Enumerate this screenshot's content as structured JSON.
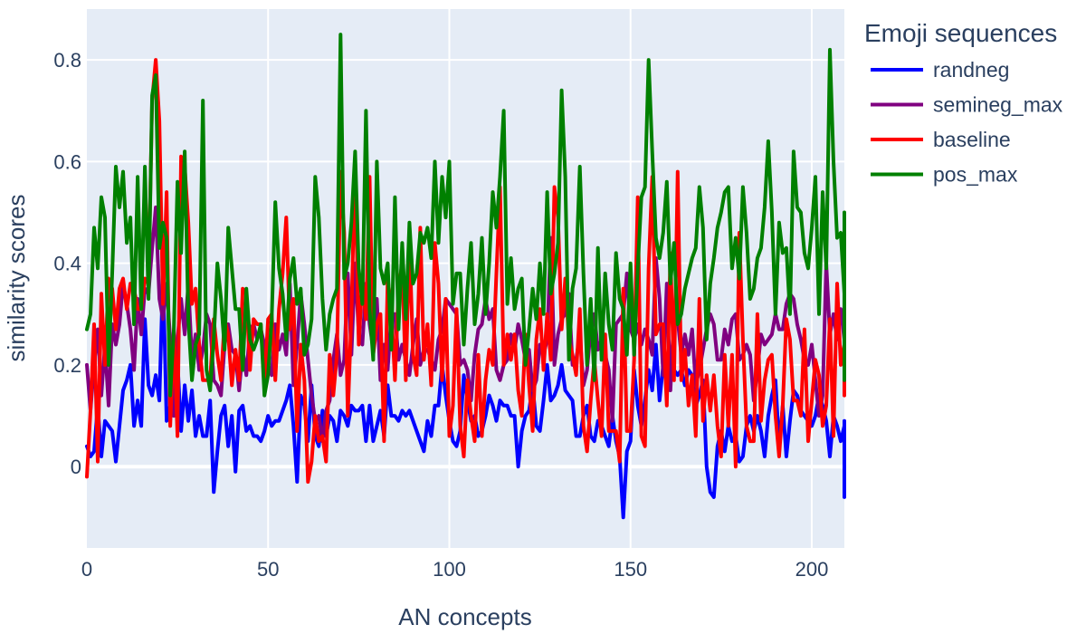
{
  "chart_data": {
    "type": "line",
    "xlabel": "AN concepts",
    "ylabel": "similarity scores",
    "xlim": [
      0,
      209
    ],
    "ylim": [
      -0.16,
      0.9
    ],
    "xticks": [
      0,
      50,
      100,
      150,
      200
    ],
    "yticks": [
      0,
      0.2,
      0.4,
      0.6,
      0.8
    ],
    "ytick_labels": [
      "0",
      "0.2",
      "0.4",
      "0.6",
      "0.8"
    ],
    "grid": true,
    "legend": {
      "title": "Emoji sequences",
      "placement": "right"
    },
    "plot_background": "#e5ecf6",
    "series": [
      {
        "name": "randneg",
        "color": "#0000ff",
        "values": [
          0.04,
          0.02,
          0.03,
          0.12,
          0.02,
          0.09,
          0.08,
          0.07,
          0.01,
          0.08,
          0.15,
          0.17,
          0.2,
          0.08,
          0.13,
          0.08,
          0.29,
          0.16,
          0.14,
          0.18,
          0.13,
          0.38,
          0.09,
          0.12,
          0.1,
          0.21,
          0.07,
          0.16,
          0.09,
          0.15,
          0.06,
          0.1,
          0.06,
          0.06,
          0.13,
          -0.05,
          0.03,
          0.1,
          0.12,
          0.04,
          0.1,
          -0.01,
          0.11,
          0.12,
          0.07,
          0.08,
          0.06,
          0.06,
          0.05,
          0.07,
          0.1,
          0.08,
          0.09,
          0.09,
          0.11,
          0.13,
          0.16,
          0.08,
          -0.03,
          0.14,
          0.12,
          0.05,
          0.16,
          0.06,
          0.04,
          0.11,
          0.06,
          0.1,
          0.09,
          0.05,
          0.11,
          0.1,
          0.08,
          0.12,
          0.11,
          0.11,
          0.12,
          0.05,
          0.12,
          0.05,
          0.08,
          0.11,
          0.06,
          0.16,
          0.1,
          0.1,
          0.09,
          0.11,
          0.1,
          0.11,
          0.09,
          0.07,
          0.05,
          0.03,
          0.09,
          0.06,
          0.12,
          0.12,
          0.2,
          0.14,
          0.09,
          0.05,
          0.04,
          0.07,
          0.18,
          0.13,
          0.09,
          0.1,
          0.06,
          0.07,
          0.1,
          0.14,
          0.12,
          0.09,
          0.13,
          0.12,
          0.12,
          0.1,
          0.1,
          0.0,
          0.07,
          0.1,
          0.11,
          0.16,
          0.08,
          0.07,
          0.13,
          0.2,
          0.13,
          0.14,
          0.16,
          0.2,
          0.15,
          0.14,
          0.13,
          0.06,
          0.06,
          0.1,
          0.12,
          0.06,
          0.05,
          0.09,
          0.08,
          0.06,
          0.04,
          0.1,
          0.05,
          0.02,
          -0.1,
          0.03,
          0.05,
          0.19,
          0.12,
          0.08,
          0.13,
          0.19,
          0.15,
          0.24,
          0.13,
          0.2,
          0.18,
          0.22,
          0.19,
          0.18,
          0.19,
          0.16,
          0.19,
          0.18,
          0.12,
          0.14,
          0.17,
          0.0,
          -0.05,
          -0.06,
          0.04,
          0.07,
          0.03,
          0.08,
          0.05,
          0.06,
          0.01,
          0.02,
          0.08,
          0.1,
          0.07,
          0.1,
          0.07,
          0.02,
          0.1,
          0.14,
          0.17,
          0.04,
          0.12,
          0.02,
          0.09,
          0.15,
          0.14,
          0.11,
          0.1,
          0.09,
          0.08,
          0.1,
          0.14,
          0.12,
          0.09,
          0.02,
          0.1,
          0.08,
          0.05,
          0.08,
          0.05,
          0.07,
          -0.06,
          0.09
        ]
      },
      {
        "name": "semineg_max",
        "color": "#800080",
        "values": [
          0.2,
          0.11,
          0.2,
          0.27,
          0.14,
          0.24,
          0.12,
          0.28,
          0.24,
          0.28,
          0.36,
          0.32,
          0.27,
          0.19,
          0.33,
          0.26,
          0.35,
          0.34,
          0.43,
          0.51,
          0.33,
          0.29,
          0.36,
          0.25,
          0.1,
          0.25,
          0.33,
          0.26,
          0.36,
          0.21,
          0.26,
          0.19,
          0.23,
          0.3,
          0.28,
          0.17,
          0.16,
          0.14,
          0.24,
          0.28,
          0.23,
          0.22,
          0.15,
          0.23,
          0.18,
          0.27,
          0.28,
          0.25,
          0.27,
          0.24,
          0.2,
          0.18,
          0.28,
          0.23,
          0.26,
          0.22,
          0.36,
          0.16,
          0.24,
          0.34,
          0.28,
          0.21,
          0.14,
          0.09,
          0.1,
          0.05,
          0.11,
          0.13,
          0.21,
          0.26,
          0.18,
          0.21,
          0.38,
          0.22,
          0.4,
          0.26,
          0.24,
          0.36,
          0.28,
          0.23,
          0.33,
          0.17,
          0.24,
          0.19,
          0.3,
          0.3,
          0.21,
          0.24,
          0.21,
          0.18,
          0.24,
          0.29,
          0.2,
          0.23,
          0.23,
          0.21,
          0.19,
          0.25,
          0.27,
          0.33,
          0.32,
          0.31,
          0.3,
          0.2,
          0.21,
          0.19,
          0.13,
          0.22,
          0.27,
          0.28,
          0.33,
          0.29,
          0.31,
          0.19,
          0.17,
          0.2,
          0.21,
          0.26,
          0.23,
          0.28,
          0.25,
          0.21,
          0.23,
          0.15,
          0.17,
          0.24,
          0.22,
          0.25,
          0.45,
          0.2,
          0.26,
          0.29,
          0.3,
          0.34,
          0.2,
          0.21,
          0.26,
          0.16,
          0.19,
          0.27,
          0.3,
          0.23,
          0.25,
          0.22,
          0.19,
          0.09,
          0.28,
          0.29,
          0.3,
          0.38,
          0.27,
          0.25,
          0.28,
          0.24,
          0.27,
          0.25,
          0.22,
          0.41,
          0.33,
          0.18,
          0.36,
          0.15,
          0.3,
          0.29,
          0.22,
          0.26,
          0.22,
          0.27,
          0.16,
          0.19,
          0.23,
          0.27,
          0.3,
          0.28,
          0.21,
          0.21,
          0.27,
          0.24,
          0.29,
          0.3,
          0.21,
          0.22,
          0.24,
          0.22,
          0.13,
          0.19,
          0.26,
          0.24,
          0.25,
          0.26,
          0.3,
          0.27,
          0.27,
          0.32,
          0.34,
          0.33,
          0.28,
          0.25,
          0.21,
          0.2,
          0.24,
          0.17,
          0.1,
          0.14,
          0.4,
          0.26,
          0.3,
          0.25,
          0.31,
          0.25
        ]
      },
      {
        "name": "baseline",
        "color": "#ff0000",
        "values": [
          -0.02,
          0.11,
          0.28,
          0.01,
          0.34,
          0.2,
          0.37,
          0.35,
          0.27,
          0.35,
          0.37,
          0.31,
          0.36,
          0.35,
          0.31,
          0.31,
          0.37,
          0.36,
          0.72,
          0.8,
          0.68,
          0.32,
          0.54,
          0.08,
          0.27,
          0.06,
          0.61,
          0.59,
          0.48,
          0.32,
          0.35,
          0.24,
          0.17,
          0.17,
          0.17,
          0.29,
          0.22,
          0.17,
          0.29,
          0.26,
          0.16,
          0.23,
          0.17,
          0.35,
          0.34,
          0.19,
          0.29,
          0.28,
          0.28,
          0.16,
          0.29,
          0.3,
          0.17,
          0.31,
          0.38,
          0.49,
          0.27,
          0.33,
          0.07,
          0.24,
          0.17,
          -0.03,
          0.01,
          0.1,
          0.05,
          0.06,
          0.01,
          0.22,
          0.14,
          0.22,
          0.58,
          0.46,
          0.1,
          0.3,
          0.6,
          0.24,
          0.37,
          0.29,
          0.57,
          0.22,
          0.28,
          0.3,
          0.05,
          0.37,
          0.31,
          0.17,
          0.35,
          0.4,
          0.17,
          0.45,
          0.22,
          0.18,
          0.47,
          0.21,
          0.28,
          0.16,
          0.44,
          0.36,
          0.17,
          0.33,
          0.06,
          0.12,
          0.31,
          0.08,
          0.02,
          0.17,
          0.1,
          0.05,
          0.22,
          0.06,
          0.17,
          0.23,
          0.2,
          0.38,
          0.55,
          0.2,
          0.26,
          0.21,
          0.26,
          0.15,
          0.1,
          0.26,
          0.16,
          0.07,
          0.25,
          0.31,
          0.19,
          0.3,
          0.21,
          0.55,
          0.49,
          0.27,
          0.37,
          0.25,
          0.22,
          0.18,
          0.31,
          0.08,
          0.03,
          0.13,
          0.21,
          0.13,
          0.06,
          0.26,
          0.07,
          0.07,
          0.07,
          0.01,
          0.35,
          0.07,
          0.07,
          0.21,
          0.53,
          0.06,
          0.04,
          0.39,
          0.57,
          0.26,
          0.28,
          0.28,
          0.12,
          0.42,
          0.17,
          0.58,
          0.17,
          0.23,
          0.12,
          0.18,
          0.06,
          0.33,
          0.09,
          0.18,
          0.11,
          0.18,
          0.08,
          0.02,
          0.22,
          0.08,
          0.22,
          0.0,
          0.46,
          0.25,
          0.08,
          0.05,
          0.05,
          0.3,
          0.09,
          0.17,
          0.21,
          0.22,
          0.1,
          0.02,
          0.12,
          0.29,
          0.25,
          0.13,
          0.13,
          0.1,
          0.27,
          0.05,
          0.13,
          0.21,
          0.18,
          0.08,
          0.12,
          0.29,
          0.06,
          0.36,
          0.2,
          0.24,
          0.34,
          0.26,
          0.25,
          0.14
        ]
      },
      {
        "name": "pos_max",
        "color": "#008000",
        "values": [
          0.27,
          0.3,
          0.47,
          0.39,
          0.53,
          0.49,
          0.2,
          0.38,
          0.59,
          0.51,
          0.58,
          0.44,
          0.49,
          0.28,
          0.57,
          0.31,
          0.59,
          0.33,
          0.73,
          0.77,
          0.43,
          0.48,
          0.45,
          0.14,
          0.27,
          0.56,
          0.42,
          0.62,
          0.29,
          0.17,
          0.24,
          0.26,
          0.72,
          0.19,
          0.15,
          0.25,
          0.4,
          0.33,
          0.23,
          0.47,
          0.39,
          0.31,
          0.31,
          0.19,
          0.35,
          0.25,
          0.23,
          0.25,
          0.28,
          0.14,
          0.18,
          0.29,
          0.52,
          0.39,
          0.34,
          0.25,
          0.37,
          0.41,
          0.32,
          0.35,
          0.22,
          0.24,
          0.29,
          0.57,
          0.49,
          0.33,
          0.23,
          0.3,
          0.33,
          0.35,
          0.85,
          0.37,
          0.4,
          0.48,
          0.62,
          0.39,
          0.32,
          0.7,
          0.31,
          0.21,
          0.6,
          0.39,
          0.36,
          0.4,
          0.23,
          0.53,
          0.27,
          0.44,
          0.29,
          0.48,
          0.36,
          0.38,
          0.46,
          0.44,
          0.47,
          0.41,
          0.6,
          0.44,
          0.57,
          0.49,
          0.6,
          0.32,
          0.38,
          0.38,
          0.24,
          0.35,
          0.44,
          0.28,
          0.34,
          0.45,
          0.3,
          0.4,
          0.54,
          0.47,
          0.57,
          0.7,
          0.32,
          0.41,
          0.31,
          0.35,
          0.37,
          0.2,
          0.27,
          0.35,
          0.29,
          0.4,
          0.3,
          0.54,
          0.34,
          0.38,
          0.44,
          0.74,
          0.57,
          0.21,
          0.35,
          0.39,
          0.59,
          0.38,
          0.2,
          0.33,
          0.17,
          0.43,
          0.21,
          0.38,
          0.28,
          0.23,
          0.42,
          0.33,
          0.31,
          0.22,
          0.4,
          0.22,
          0.39,
          0.53,
          0.55,
          0.8,
          0.62,
          0.45,
          0.41,
          0.46,
          0.56,
          0.36,
          0.44,
          0.28,
          0.3,
          0.35,
          0.38,
          0.41,
          0.43,
          0.55,
          0.47,
          0.25,
          0.36,
          0.41,
          0.47,
          0.5,
          0.54,
          0.55,
          0.39,
          0.45,
          0.37,
          0.55,
          0.46,
          0.33,
          0.35,
          0.41,
          0.43,
          0.51,
          0.64,
          0.5,
          0.3,
          0.48,
          0.42,
          0.43,
          0.3,
          0.62,
          0.51,
          0.5,
          0.42,
          0.39,
          0.47,
          0.57,
          0.3,
          0.54,
          0.39,
          0.82,
          0.6,
          0.45,
          0.46,
          0.34,
          0.2,
          0.44,
          0.5,
          0.17
        ]
      }
    ]
  }
}
